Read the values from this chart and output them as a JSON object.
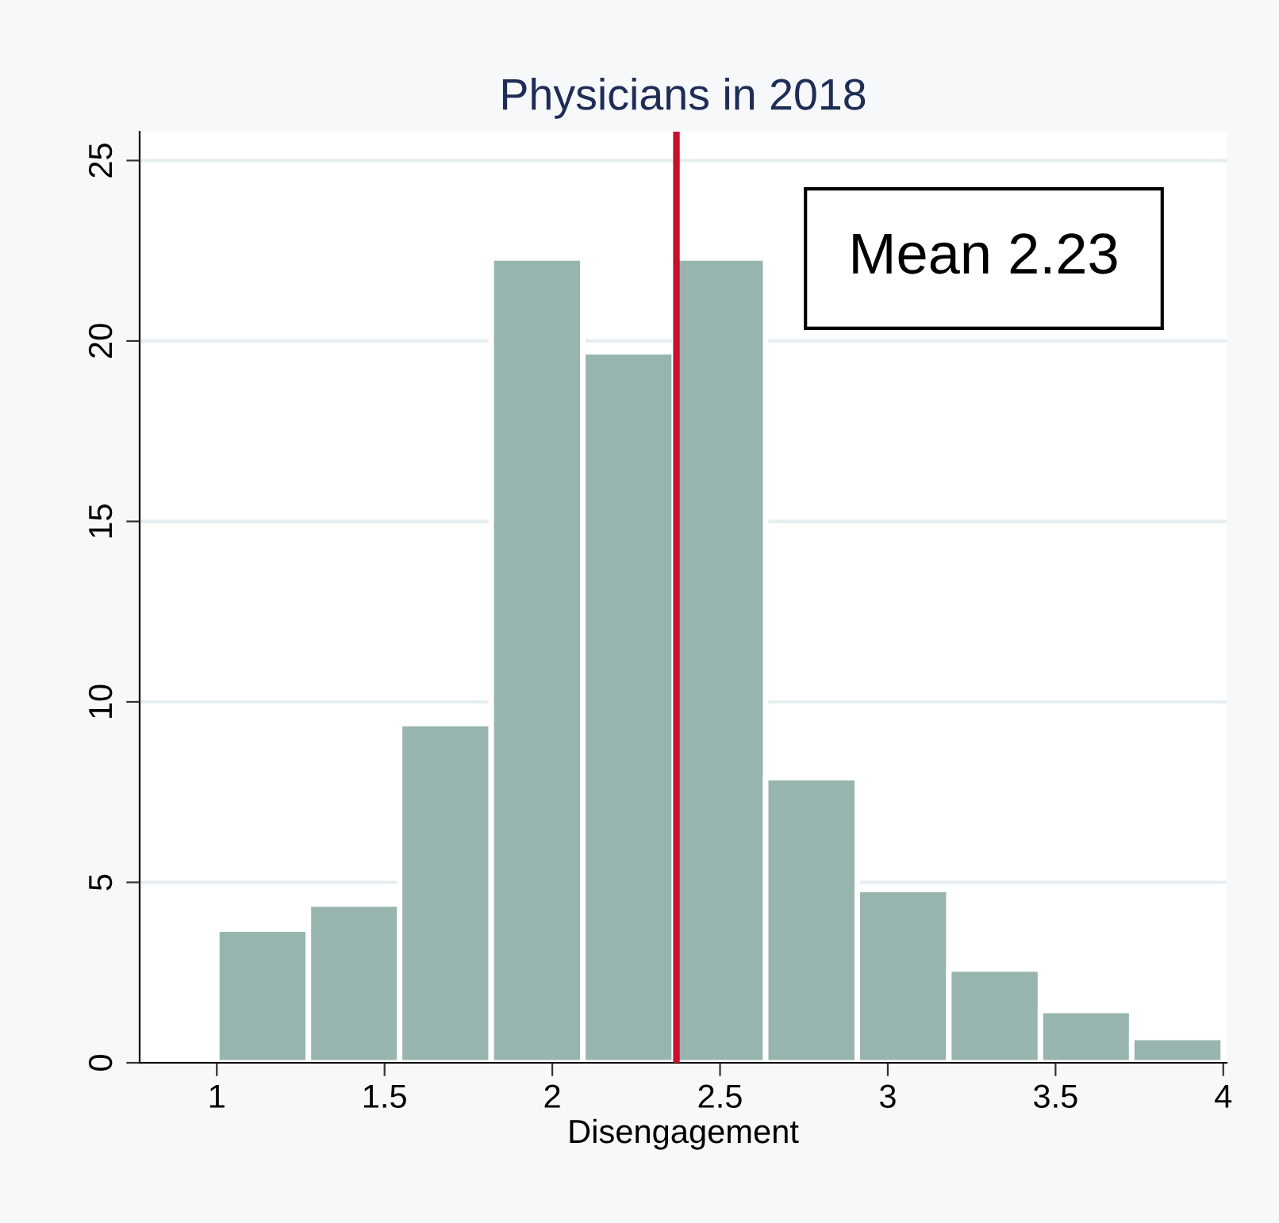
{
  "chart_data": {
    "type": "histogram",
    "title": "Physicians in 2018",
    "xlabel": "Disengagement",
    "bins": [
      1,
      1.273,
      1.545,
      1.818,
      2.091,
      2.364,
      2.636,
      2.909,
      3.182,
      3.455,
      3.727,
      4
    ],
    "values": [
      3.7,
      4.4,
      9.4,
      22.3,
      19.7,
      22.3,
      7.9,
      4.8,
      2.6,
      1.45,
      0.7
    ],
    "color": "#97b5ae",
    "xlim": [
      0.77,
      4.01
    ],
    "ylim": [
      0,
      25.8
    ],
    "xticks": [
      1,
      1.5,
      2,
      2.5,
      3,
      3.5,
      4
    ],
    "yticks": [
      0,
      5,
      10,
      15,
      20,
      25
    ],
    "grid": "y",
    "ref_lines": [
      {
        "axis": "x",
        "value": 2.37,
        "color": "#c8102e"
      }
    ],
    "annotations": [
      "Mean 2.23"
    ]
  }
}
